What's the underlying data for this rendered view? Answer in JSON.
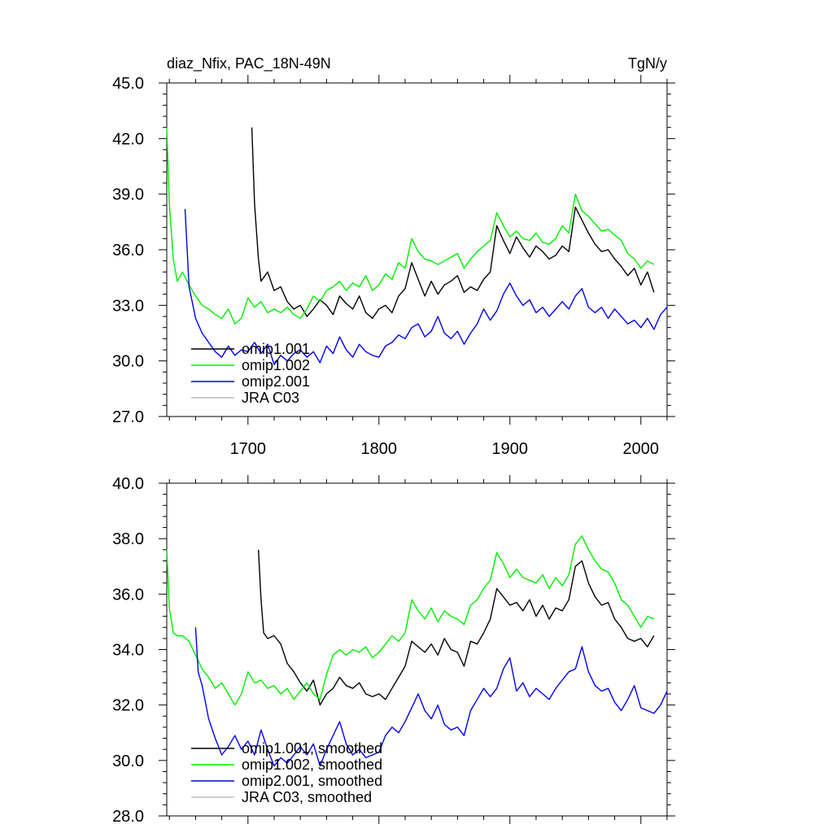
{
  "chart_data": [
    {
      "type": "line",
      "panel": "top",
      "title": "diaz_Nfix, PAC_18N-49N",
      "units": "TgN/y",
      "xlim": [
        1638,
        2020
      ],
      "ylim": [
        27.0,
        45.0
      ],
      "x_ticks": [
        1700,
        1800,
        1900,
        2000
      ],
      "x_tick_labels": [
        "1700",
        "1800",
        "1900",
        "2000"
      ],
      "y_ticks": [
        27.0,
        30.0,
        33.0,
        36.0,
        39.0,
        42.0,
        45.0
      ],
      "y_tick_labels": [
        "27.0",
        "30.0",
        "33.0",
        "36.0",
        "39.0",
        "42.0",
        "45.0"
      ],
      "legend": [
        "omip1.001",
        "omip1.002",
        "omip2.001",
        "JRA C03"
      ],
      "series": [
        {
          "name": "omip1.001",
          "color": "#000000",
          "x": [
            1703,
            1705,
            1708,
            1710,
            1715,
            1720,
            1725,
            1730,
            1735,
            1740,
            1745,
            1750,
            1755,
            1760,
            1765,
            1770,
            1775,
            1780,
            1785,
            1790,
            1795,
            1800,
            1805,
            1810,
            1815,
            1820,
            1825,
            1830,
            1835,
            1840,
            1845,
            1850,
            1855,
            1860,
            1865,
            1870,
            1875,
            1880,
            1885,
            1890,
            1895,
            1900,
            1905,
            1910,
            1915,
            1920,
            1925,
            1930,
            1935,
            1940,
            1945,
            1950,
            1955,
            1960,
            1965,
            1970,
            1975,
            1980,
            1985,
            1990,
            1995,
            2000,
            2005,
            2010
          ],
          "values": [
            42.6,
            38.5,
            35.5,
            34.3,
            34.8,
            33.8,
            34.0,
            33.2,
            32.8,
            33.0,
            32.4,
            32.8,
            33.3,
            33.0,
            32.5,
            33.5,
            33.1,
            32.8,
            33.5,
            32.6,
            32.3,
            32.8,
            33.0,
            32.6,
            33.5,
            33.9,
            35.3,
            34.4,
            33.5,
            34.3,
            33.6,
            34.1,
            34.3,
            34.6,
            33.7,
            34.0,
            33.8,
            34.4,
            34.8,
            37.3,
            36.5,
            35.8,
            36.7,
            36.1,
            35.6,
            36.2,
            35.9,
            35.5,
            35.7,
            36.2,
            35.9,
            38.3,
            37.6,
            36.9,
            36.3,
            35.9,
            36.0,
            35.5,
            35.1,
            34.6,
            35.0,
            34.1,
            34.8,
            33.7
          ]
        },
        {
          "name": "omip1.002",
          "color": "#00ee00",
          "x": [
            1638,
            1640,
            1643,
            1646,
            1650,
            1655,
            1660,
            1665,
            1670,
            1675,
            1680,
            1685,
            1690,
            1695,
            1700,
            1705,
            1710,
            1715,
            1720,
            1725,
            1730,
            1735,
            1740,
            1745,
            1750,
            1755,
            1760,
            1765,
            1770,
            1775,
            1780,
            1785,
            1790,
            1795,
            1800,
            1805,
            1810,
            1815,
            1820,
            1825,
            1830,
            1835,
            1840,
            1845,
            1850,
            1855,
            1860,
            1865,
            1870,
            1875,
            1880,
            1885,
            1890,
            1895,
            1900,
            1905,
            1910,
            1915,
            1920,
            1925,
            1930,
            1935,
            1940,
            1945,
            1950,
            1955,
            1960,
            1965,
            1970,
            1975,
            1980,
            1985,
            1990,
            1995,
            2000,
            2005,
            2010
          ],
          "values": [
            42.6,
            38.5,
            35.5,
            34.3,
            34.8,
            34.1,
            33.5,
            33.0,
            32.8,
            32.5,
            32.3,
            32.8,
            32.0,
            32.3,
            33.4,
            32.9,
            33.2,
            32.6,
            32.8,
            32.6,
            32.9,
            32.5,
            32.3,
            32.8,
            33.5,
            33.2,
            33.8,
            34.0,
            34.3,
            33.8,
            34.2,
            34.0,
            34.6,
            33.8,
            34.1,
            34.7,
            34.4,
            35.3,
            35.0,
            36.6,
            35.9,
            35.5,
            35.4,
            35.2,
            35.4,
            35.6,
            35.8,
            35.0,
            35.5,
            35.9,
            36.2,
            36.5,
            38.0,
            37.3,
            36.7,
            37.0,
            36.6,
            36.5,
            36.9,
            36.4,
            36.3,
            36.6,
            37.3,
            36.9,
            39.0,
            38.1,
            37.8,
            37.4,
            37.0,
            37.1,
            36.8,
            36.5,
            35.8,
            35.5,
            35.0,
            35.4,
            35.2
          ]
        },
        {
          "name": "omip2.001",
          "color": "#0000ee",
          "x": [
            1652,
            1655,
            1658,
            1660,
            1665,
            1670,
            1675,
            1680,
            1685,
            1690,
            1695,
            1700,
            1705,
            1710,
            1715,
            1720,
            1725,
            1730,
            1735,
            1740,
            1745,
            1750,
            1755,
            1760,
            1765,
            1770,
            1775,
            1780,
            1785,
            1790,
            1795,
            1800,
            1805,
            1810,
            1815,
            1820,
            1825,
            1830,
            1835,
            1840,
            1845,
            1850,
            1855,
            1860,
            1865,
            1870,
            1875,
            1880,
            1885,
            1890,
            1895,
            1900,
            1905,
            1910,
            1915,
            1920,
            1925,
            1930,
            1935,
            1940,
            1945,
            1950,
            1955,
            1960,
            1965,
            1970,
            1975,
            1980,
            1985,
            1990,
            1995,
            2000,
            2005,
            2010,
            2015,
            2020
          ],
          "values": [
            38.2,
            34.0,
            33.0,
            32.3,
            31.5,
            31.0,
            30.5,
            30.2,
            30.8,
            30.3,
            30.6,
            30.5,
            31.0,
            30.4,
            30.9,
            29.8,
            30.3,
            30.0,
            30.4,
            30.6,
            30.2,
            30.5,
            29.9,
            30.8,
            30.4,
            31.3,
            30.6,
            30.2,
            30.9,
            30.5,
            30.3,
            30.2,
            30.8,
            31.0,
            31.4,
            31.2,
            31.8,
            32.0,
            31.3,
            31.6,
            32.4,
            31.5,
            31.2,
            31.6,
            30.9,
            31.5,
            32.0,
            32.8,
            32.2,
            32.7,
            33.6,
            34.2,
            33.5,
            33.0,
            33.3,
            32.6,
            32.9,
            32.4,
            32.8,
            33.2,
            32.8,
            33.5,
            33.9,
            32.9,
            32.6,
            32.9,
            32.3,
            32.8,
            32.4,
            32.0,
            32.2,
            31.8,
            32.3,
            31.7,
            32.5,
            32.9
          ]
        },
        {
          "name": "JRA C03",
          "color": "#bbbbbb",
          "x": [],
          "values": []
        }
      ]
    },
    {
      "type": "line",
      "panel": "bottom",
      "title": "",
      "units": "",
      "xlim": [
        1638,
        2020
      ],
      "ylim": [
        28.0,
        40.0
      ],
      "x_ticks": [
        1700,
        1800,
        1900,
        2000
      ],
      "x_tick_labels": [],
      "y_ticks": [
        28.0,
        30.0,
        32.0,
        34.0,
        36.0,
        38.0,
        40.0
      ],
      "y_tick_labels": [
        "28.0",
        "30.0",
        "32.0",
        "34.0",
        "36.0",
        "38.0",
        "40.0"
      ],
      "legend": [
        "omip1.001, smoothed",
        "omip1.002, smoothed",
        "omip2.001, smoothed",
        "JRA C03, smoothed"
      ],
      "series": [
        {
          "name": "omip1.001, smoothed",
          "color": "#000000",
          "x": [
            1708,
            1710,
            1712,
            1715,
            1720,
            1725,
            1730,
            1735,
            1740,
            1745,
            1750,
            1755,
            1760,
            1765,
            1770,
            1775,
            1780,
            1785,
            1790,
            1795,
            1800,
            1805,
            1810,
            1815,
            1820,
            1825,
            1830,
            1835,
            1840,
            1845,
            1850,
            1855,
            1860,
            1865,
            1870,
            1875,
            1880,
            1885,
            1890,
            1895,
            1900,
            1905,
            1910,
            1915,
            1920,
            1925,
            1930,
            1935,
            1940,
            1945,
            1950,
            1955,
            1960,
            1965,
            1970,
            1975,
            1980,
            1985,
            1990,
            1995,
            2000,
            2005,
            2010
          ],
          "values": [
            37.6,
            35.8,
            34.6,
            34.4,
            34.5,
            34.2,
            33.5,
            33.2,
            32.8,
            32.5,
            32.9,
            32.0,
            32.4,
            32.6,
            33.0,
            32.7,
            32.6,
            32.8,
            32.4,
            32.3,
            32.4,
            32.2,
            32.6,
            33.0,
            33.4,
            34.3,
            34.1,
            33.9,
            34.2,
            33.8,
            34.4,
            34.0,
            33.9,
            33.4,
            34.3,
            34.2,
            34.6,
            35.1,
            36.2,
            35.9,
            35.6,
            35.7,
            35.4,
            35.8,
            35.2,
            35.6,
            35.1,
            35.5,
            35.4,
            35.8,
            37.0,
            37.2,
            36.4,
            35.9,
            35.6,
            35.7,
            35.1,
            34.8,
            34.4,
            34.3,
            34.4,
            34.1,
            34.5
          ]
        },
        {
          "name": "omip1.002, smoothed",
          "color": "#00ee00",
          "x": [
            1638,
            1640,
            1643,
            1646,
            1650,
            1655,
            1660,
            1665,
            1670,
            1675,
            1680,
            1685,
            1690,
            1695,
            1700,
            1705,
            1710,
            1715,
            1720,
            1725,
            1730,
            1735,
            1740,
            1745,
            1750,
            1755,
            1760,
            1765,
            1770,
            1775,
            1780,
            1785,
            1790,
            1795,
            1800,
            1805,
            1810,
            1815,
            1820,
            1825,
            1830,
            1835,
            1840,
            1845,
            1850,
            1855,
            1860,
            1865,
            1870,
            1875,
            1880,
            1885,
            1890,
            1895,
            1900,
            1905,
            1910,
            1915,
            1920,
            1925,
            1930,
            1935,
            1940,
            1945,
            1950,
            1955,
            1960,
            1965,
            1970,
            1975,
            1980,
            1985,
            1990,
            1995,
            2000,
            2005,
            2010
          ],
          "values": [
            37.6,
            35.5,
            34.6,
            34.5,
            34.5,
            34.3,
            33.8,
            33.3,
            33.0,
            32.6,
            32.8,
            32.4,
            32.0,
            32.4,
            33.2,
            32.8,
            32.9,
            32.6,
            32.7,
            32.4,
            32.6,
            32.2,
            32.5,
            32.8,
            32.4,
            32.2,
            33.1,
            33.8,
            34.0,
            33.8,
            34.0,
            33.9,
            34.1,
            33.7,
            33.9,
            34.2,
            34.5,
            34.3,
            34.6,
            35.8,
            35.4,
            35.1,
            35.5,
            35.0,
            35.4,
            35.2,
            35.1,
            34.9,
            35.6,
            35.8,
            36.2,
            36.5,
            37.5,
            37.1,
            36.6,
            36.9,
            36.6,
            36.5,
            36.4,
            36.7,
            36.2,
            36.6,
            36.3,
            36.7,
            37.8,
            38.1,
            37.6,
            37.2,
            36.9,
            36.8,
            36.4,
            35.8,
            35.6,
            35.2,
            34.8,
            35.2,
            35.1
          ]
        },
        {
          "name": "omip2.001, smoothed",
          "color": "#0000ee",
          "x": [
            1660,
            1662,
            1665,
            1670,
            1675,
            1680,
            1685,
            1690,
            1695,
            1700,
            1705,
            1710,
            1715,
            1720,
            1725,
            1730,
            1735,
            1740,
            1745,
            1750,
            1755,
            1760,
            1765,
            1770,
            1775,
            1780,
            1785,
            1790,
            1795,
            1800,
            1805,
            1810,
            1815,
            1820,
            1825,
            1830,
            1835,
            1840,
            1845,
            1850,
            1855,
            1860,
            1865,
            1870,
            1875,
            1880,
            1885,
            1890,
            1895,
            1900,
            1905,
            1910,
            1915,
            1920,
            1925,
            1930,
            1935,
            1940,
            1945,
            1950,
            1955,
            1960,
            1965,
            1970,
            1975,
            1980,
            1985,
            1990,
            1995,
            2000,
            2005,
            2010,
            2015,
            2020
          ],
          "values": [
            34.8,
            33.2,
            32.7,
            31.5,
            30.8,
            30.2,
            30.5,
            30.9,
            30.4,
            30.7,
            30.2,
            31.1,
            30.4,
            29.8,
            30.1,
            29.9,
            30.2,
            30.5,
            30.2,
            30.6,
            29.8,
            30.4,
            30.9,
            31.4,
            30.6,
            30.2,
            30.4,
            30.1,
            30.2,
            30.3,
            30.9,
            31.2,
            31.0,
            31.4,
            31.9,
            32.4,
            31.8,
            31.5,
            32.0,
            31.3,
            31.1,
            31.2,
            30.9,
            31.8,
            32.2,
            32.6,
            32.3,
            32.6,
            33.3,
            33.7,
            32.5,
            32.8,
            32.3,
            32.6,
            32.4,
            32.2,
            32.6,
            32.9,
            33.2,
            33.3,
            34.1,
            33.2,
            32.7,
            32.5,
            32.6,
            32.1,
            31.8,
            32.2,
            32.7,
            31.9,
            31.8,
            31.7,
            32.0,
            32.5
          ]
        },
        {
          "name": "JRA C03, smoothed",
          "color": "#bbbbbb",
          "x": [],
          "values": []
        }
      ]
    }
  ]
}
